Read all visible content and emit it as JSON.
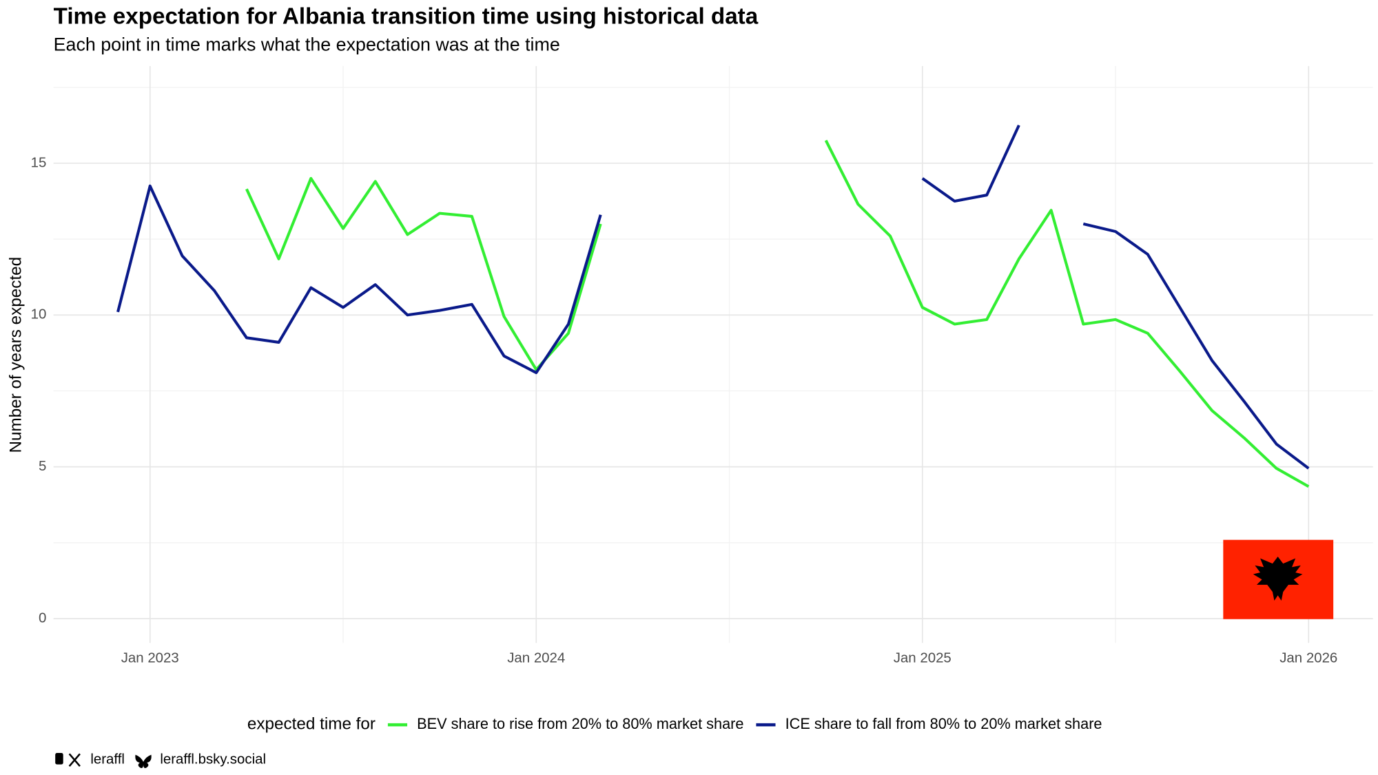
{
  "chart_data": {
    "type": "line",
    "title": "Time expectation for Albania transition time using historical data",
    "subtitle": "Each point in time marks what the expectation was at the time",
    "y_label": "Number of years expected",
    "legend_title": "expected time for",
    "x": [
      "2022-12",
      "2023-01",
      "2023-02",
      "2023-03",
      "2023-04",
      "2023-05",
      "2023-06",
      "2023-07",
      "2023-08",
      "2023-09",
      "2023-10",
      "2023-11",
      "2023-12",
      "2024-01",
      "2024-02",
      "2024-03",
      "2024-04",
      "2024-05",
      "2024-06",
      "2024-07",
      "2024-08",
      "2024-09",
      "2024-10",
      "2024-11",
      "2024-12",
      "2025-01",
      "2025-02",
      "2025-03",
      "2025-04",
      "2025-05",
      "2025-06",
      "2025-07",
      "2025-08",
      "2025-09",
      "2025-10",
      "2025-11",
      "2025-12",
      "2026-01"
    ],
    "series": [
      {
        "name": "BEV share to rise from 20% to 80% market share",
        "color": "#33ee33",
        "values": [
          null,
          null,
          null,
          null,
          14.15,
          11.85,
          14.5,
          12.85,
          14.4,
          12.65,
          13.35,
          13.25,
          9.95,
          8.2,
          9.4,
          13.0,
          null,
          null,
          null,
          null,
          null,
          null,
          15.75,
          13.65,
          12.6,
          10.25,
          9.7,
          9.85,
          11.85,
          13.45,
          9.7,
          9.85,
          9.4,
          8.15,
          6.85,
          5.95,
          4.95,
          4.35
        ]
      },
      {
        "name": "ICE share to fall from 80% to 20% market share",
        "color": "#0a1a8a",
        "values": [
          10.1,
          14.25,
          11.95,
          10.8,
          9.25,
          9.1,
          10.9,
          10.25,
          11.0,
          10.0,
          10.15,
          10.35,
          8.65,
          8.1,
          9.7,
          13.3,
          null,
          null,
          null,
          null,
          null,
          null,
          null,
          null,
          null,
          14.5,
          13.75,
          13.95,
          16.25,
          null,
          13.0,
          12.75,
          12.0,
          10.25,
          8.5,
          7.15,
          5.75,
          4.95
        ]
      }
    ],
    "xlim": [
      "2022-10",
      "2026-03"
    ],
    "xticks": [
      {
        "value": "2023-01",
        "label": "Jan 2023"
      },
      {
        "value": "2024-01",
        "label": "Jan 2024"
      },
      {
        "value": "2025-01",
        "label": "Jan 2025"
      },
      {
        "value": "2026-01",
        "label": "Jan 2026"
      }
    ],
    "ylim": [
      -0.8,
      18.2
    ],
    "yticks": [
      0,
      5,
      10,
      15
    ],
    "grid": true,
    "legend": "bottom",
    "footer": [
      "leraffl",
      "leraffl.bsky.social"
    ]
  }
}
